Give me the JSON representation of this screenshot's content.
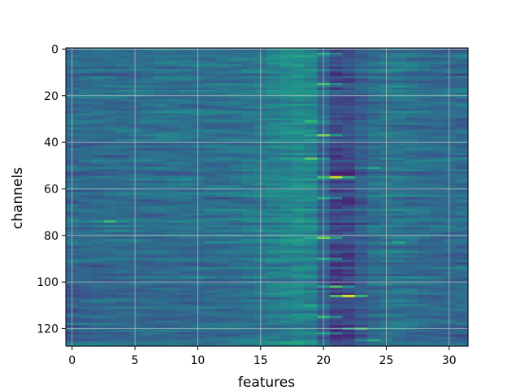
{
  "chart_data": {
    "type": "heatmap",
    "title": "",
    "xlabel": "features",
    "ylabel": "channels",
    "x_range": [
      -0.5,
      31.5
    ],
    "y_range": [
      127.5,
      -0.5
    ],
    "rows": 128,
    "cols": 32,
    "x_ticks": [
      0,
      5,
      10,
      15,
      20,
      25,
      30
    ],
    "y_ticks": [
      0,
      20,
      40,
      60,
      80,
      100,
      120
    ],
    "grid": true,
    "colormap": "viridis",
    "value_range": [
      0,
      1
    ],
    "base_level": 0.36,
    "column_profile": {
      "description_free": true,
      "levels": [
        0.34,
        0.34,
        0.35,
        0.35,
        0.35,
        0.35,
        0.36,
        0.36,
        0.36,
        0.36,
        0.36,
        0.36,
        0.37,
        0.37,
        0.38,
        0.4,
        0.43,
        0.45,
        0.48,
        0.52,
        0.3,
        0.18,
        0.22,
        0.3,
        0.36,
        0.4,
        0.38,
        0.36,
        0.35,
        0.35,
        0.35,
        0.34
      ]
    },
    "highlights": [
      {
        "row": 55,
        "col": 21,
        "value": 0.92
      },
      {
        "row": 106,
        "col": 22,
        "value": 0.95
      },
      {
        "row": 81,
        "col": 20,
        "value": 0.8
      },
      {
        "row": 37,
        "col": 20,
        "value": 0.78
      },
      {
        "row": 47,
        "col": 19,
        "value": 0.75
      },
      {
        "row": 102,
        "col": 21,
        "value": 0.72
      },
      {
        "row": 15,
        "col": 20,
        "value": 0.7
      },
      {
        "row": 120,
        "col": 23,
        "value": 0.7
      },
      {
        "row": 74,
        "col": 3,
        "value": 0.68
      },
      {
        "row": 31,
        "col": 19,
        "value": 0.66
      },
      {
        "row": 115,
        "col": 20,
        "value": 0.66
      },
      {
        "row": 2,
        "col": 20,
        "value": 0.62
      },
      {
        "row": 64,
        "col": 20,
        "value": 0.62
      },
      {
        "row": 90,
        "col": 20,
        "value": 0.62
      },
      {
        "row": 125,
        "col": 24,
        "value": 0.62
      },
      {
        "row": 51,
        "col": 24,
        "value": 0.6
      },
      {
        "row": 83,
        "col": 26,
        "value": 0.6
      },
      {
        "row": 110,
        "col": 19,
        "value": 0.6
      },
      {
        "row": 122,
        "col": 20,
        "value": 0.58
      }
    ]
  }
}
